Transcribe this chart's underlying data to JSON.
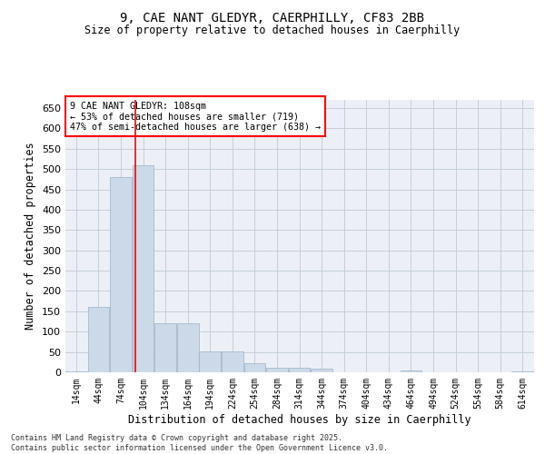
{
  "title_line1": "9, CAE NANT GLEDYR, CAERPHILLY, CF83 2BB",
  "title_line2": "Size of property relative to detached houses in Caerphilly",
  "xlabel": "Distribution of detached houses by size in Caerphilly",
  "ylabel": "Number of detached properties",
  "annotation_line1": "9 CAE NANT GLEDYR: 108sqm",
  "annotation_line2": "← 53% of detached houses are smaller (719)",
  "annotation_line3": "47% of semi-detached houses are larger (638) →",
  "bar_color": "#ccd9e8",
  "bar_edge_color": "#9ab0c8",
  "red_line_x": 108,
  "categories": [
    "14sqm",
    "44sqm",
    "74sqm",
    "104sqm",
    "134sqm",
    "164sqm",
    "194sqm",
    "224sqm",
    "254sqm",
    "284sqm",
    "314sqm",
    "344sqm",
    "374sqm",
    "404sqm",
    "434sqm",
    "464sqm",
    "494sqm",
    "524sqm",
    "554sqm",
    "584sqm",
    "614sqm"
  ],
  "bin_starts": [
    14,
    44,
    74,
    104,
    134,
    164,
    194,
    224,
    254,
    284,
    314,
    344,
    374,
    404,
    434,
    464,
    494,
    524,
    554,
    584,
    614
  ],
  "values": [
    3,
    160,
    480,
    510,
    120,
    120,
    52,
    52,
    22,
    11,
    11,
    8,
    0,
    0,
    0,
    5,
    0,
    0,
    0,
    0,
    3
  ],
  "ylim": [
    0,
    670
  ],
  "yticks": [
    0,
    50,
    100,
    150,
    200,
    250,
    300,
    350,
    400,
    450,
    500,
    550,
    600,
    650
  ],
  "footer_line1": "Contains HM Land Registry data © Crown copyright and database right 2025.",
  "footer_line2": "Contains public sector information licensed under the Open Government Licence v3.0.",
  "bg_color": "#ecf0f6",
  "grid_color": "#c5cdd8"
}
